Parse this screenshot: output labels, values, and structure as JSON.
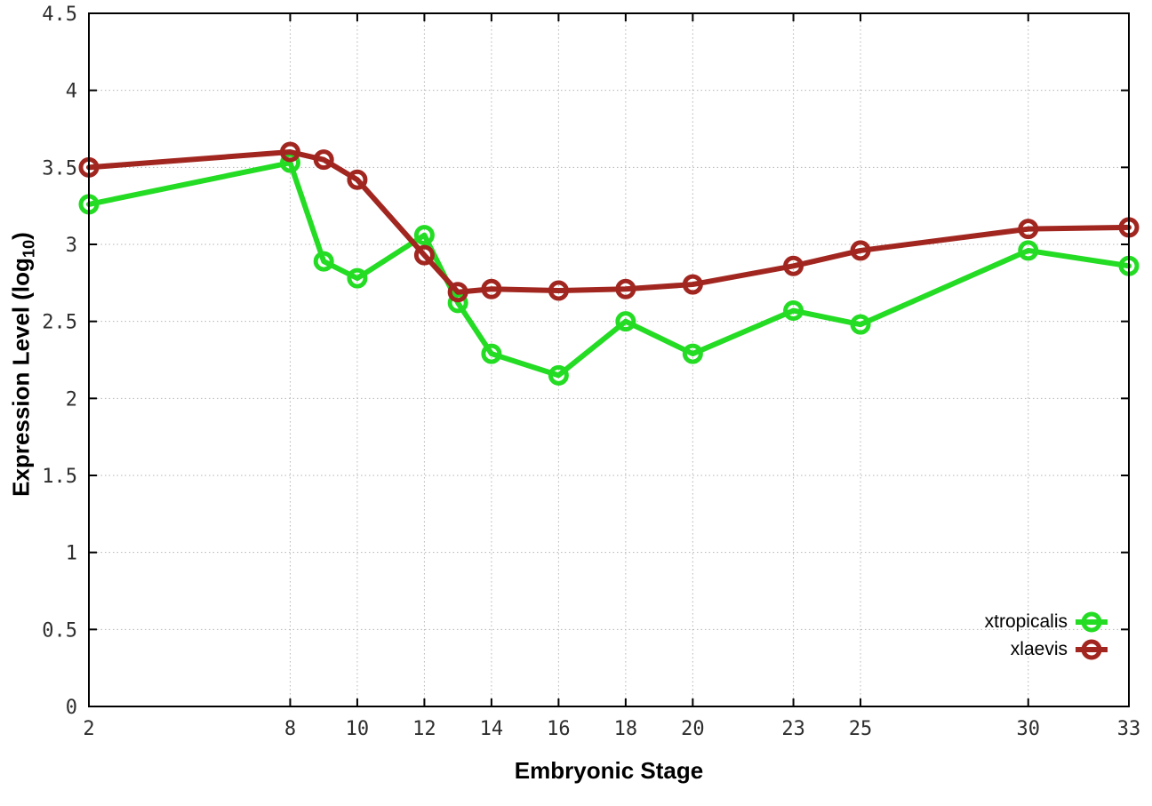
{
  "figure": {
    "background": "#ffffff",
    "border_color": "#000000",
    "grid_color": "#b3b3b3",
    "tick_label_color": "#2e2e2e"
  },
  "chart_data": {
    "type": "line",
    "title": "",
    "xlabel": "Embryonic Stage",
    "ylabel": "Expression Level (log10)",
    "ylabel_parts": {
      "pre": "Expression Level (log",
      "sub": "10",
      "post": ")"
    },
    "x": [
      2,
      8,
      9,
      10,
      12,
      13,
      14,
      16,
      18,
      20,
      23,
      25,
      30,
      33
    ],
    "series": [
      {
        "name": "xtropicalis",
        "color": "#23dc23",
        "marker": "open-circle",
        "values": [
          3.26,
          3.53,
          2.89,
          2.78,
          3.06,
          2.62,
          2.29,
          2.15,
          2.5,
          2.29,
          2.57,
          2.48,
          2.96,
          2.86
        ]
      },
      {
        "name": "xlaevis",
        "color": "#a22620",
        "marker": "open-circle",
        "values": [
          3.5,
          3.6,
          3.55,
          3.42,
          2.93,
          2.69,
          2.71,
          2.7,
          2.71,
          2.74,
          2.86,
          2.96,
          3.1,
          3.11
        ]
      }
    ],
    "xticks": [
      2,
      8,
      10,
      12,
      14,
      16,
      18,
      20,
      23,
      25,
      30,
      33
    ],
    "yticks": [
      0,
      0.5,
      1,
      1.5,
      2,
      2.5,
      3,
      3.5,
      4,
      4.5
    ],
    "xlim": [
      2,
      33
    ],
    "ylim": [
      0,
      4.5
    ],
    "grid": "dotted",
    "ticks": "inside-mirrored",
    "legend_position": "inside-bottom-right"
  }
}
